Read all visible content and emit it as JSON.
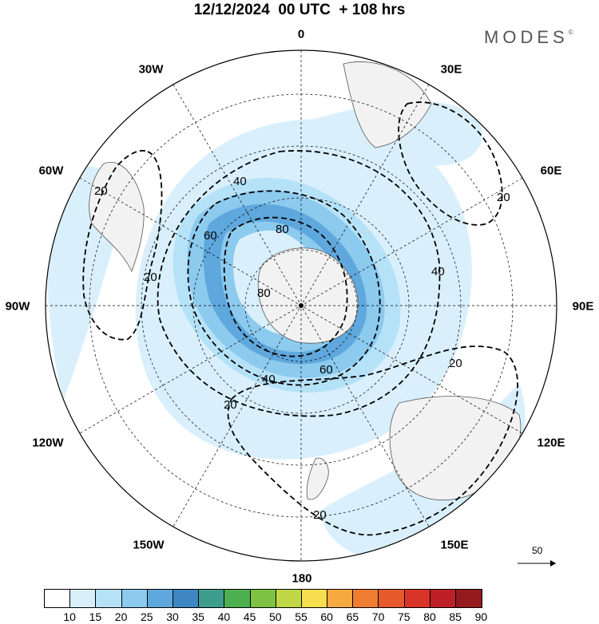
{
  "title": "12/12/2024  00 UTC  + 108 hrs",
  "brand": "MODES",
  "brand_mark": "©",
  "longitude_labels": {
    "n0": "0",
    "n30w": "30W",
    "n30e": "30E",
    "n60w": "60W",
    "n60e": "60E",
    "n90w": "90W",
    "n90e": "90E",
    "n120w": "120W",
    "n120e": "120E",
    "n150w": "150W",
    "n150e": "150E",
    "n180": "180"
  },
  "contour_labels": {
    "c20_sa": "20",
    "c20_sa2": "20",
    "c20_af": "20",
    "c20_au": "20",
    "c20_sp1": "20",
    "c20_sp2": "20",
    "c40_a": "40",
    "c40_b": "40",
    "c40_c": "40",
    "c60_a": "60",
    "c60_b": "60",
    "c80_a": "80",
    "c80_b": "80"
  },
  "vector_reference": "50",
  "colorbar": {
    "labels": [
      "10",
      "15",
      "20",
      "25",
      "30",
      "35",
      "40",
      "45",
      "50",
      "55",
      "60",
      "65",
      "70",
      "75",
      "80",
      "85",
      "90"
    ],
    "colors": [
      "#ffffff",
      "#d9f0fc",
      "#b6e2f8",
      "#8ccaee",
      "#5fa8dd",
      "#3e87c2",
      "#3d9e8e",
      "#4caf50",
      "#7dc242",
      "#c0d845",
      "#f7de4f",
      "#f5a93e",
      "#ef7d31",
      "#e65a2c",
      "#da3327",
      "#bd2026",
      "#941a1e"
    ]
  }
}
